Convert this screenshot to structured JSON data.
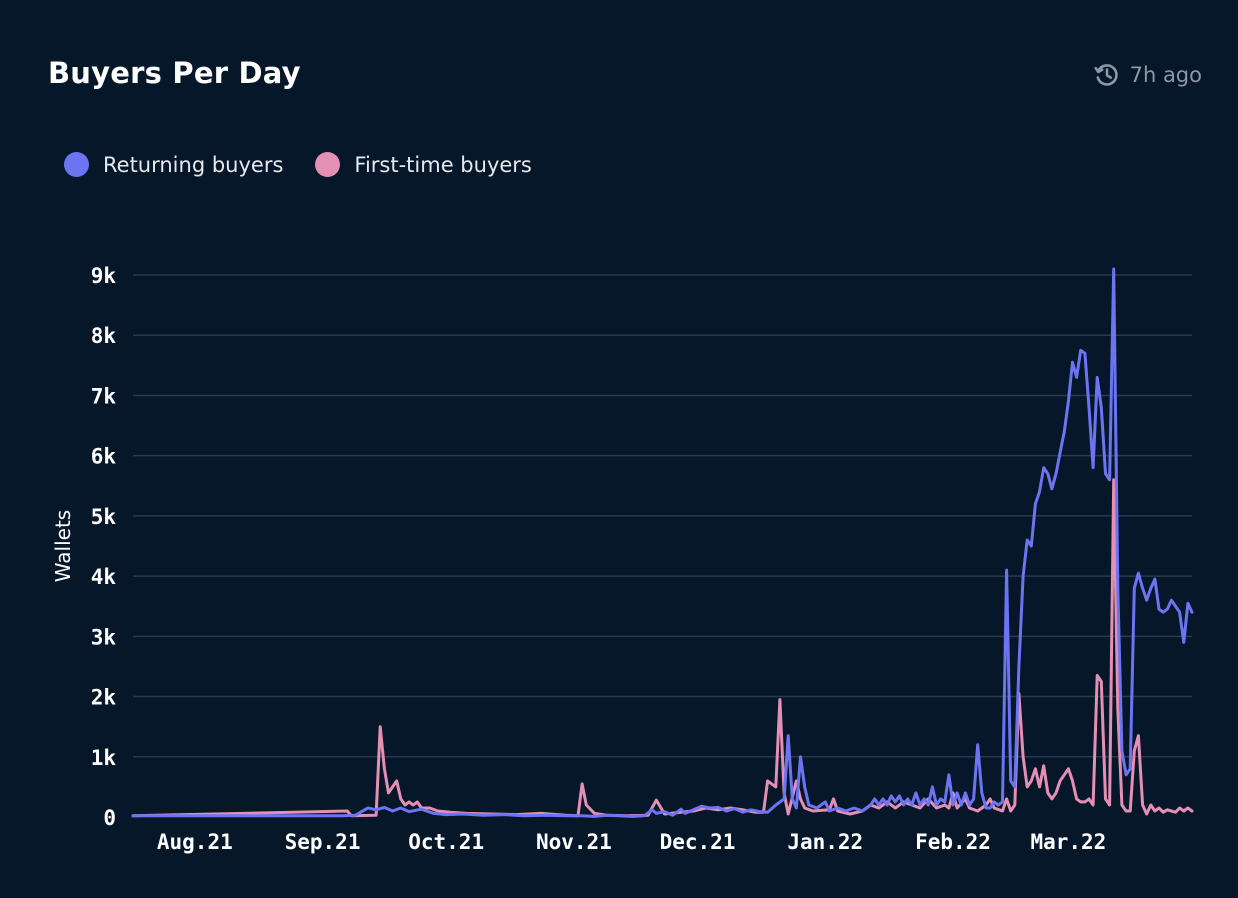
{
  "header": {
    "title": "Buyers Per Day",
    "updated": "7h ago",
    "updated_icon": "refresh-clock-icon"
  },
  "legend": {
    "items": [
      {
        "label": "Returning buyers",
        "color": "#6c74f2"
      },
      {
        "label": "First-time buyers",
        "color": "#e48fb4"
      }
    ]
  },
  "colors": {
    "background": "#06172a",
    "grid": "#263a50"
  },
  "chart_data": {
    "type": "line",
    "title": "Buyers Per Day",
    "xlabel": "",
    "ylabel": "Wallets",
    "ylim": [
      0,
      9000
    ],
    "y_ticks": [
      0,
      1000,
      2000,
      3000,
      4000,
      5000,
      6000,
      7000,
      8000,
      9000
    ],
    "y_tick_labels": [
      "0",
      "1k",
      "2k",
      "3k",
      "4k",
      "5k",
      "6k",
      "7k",
      "8k",
      "9k"
    ],
    "xlim": [
      "2021-07-17",
      "2022-03-31"
    ],
    "x_ticks": [
      "2021-08-01",
      "2021-09-01",
      "2021-10-01",
      "2021-11-01",
      "2021-12-01",
      "2022-01-01",
      "2022-02-01",
      "2022-03-01"
    ],
    "x_tick_labels": [
      "Aug.21",
      "Sep.21",
      "Oct.21",
      "Nov.21",
      "Dec.21",
      "Jan.22",
      "Feb.22",
      "Mar.22"
    ],
    "grid": true,
    "legend_position": "top-left",
    "series": [
      {
        "name": "Returning buyers",
        "color": "#6c74f2",
        "points": [
          [
            "2021-07-17",
            20
          ],
          [
            "2021-09-06",
            20
          ],
          [
            "2021-09-09",
            30
          ],
          [
            "2021-09-12",
            150
          ],
          [
            "2021-09-14",
            120
          ],
          [
            "2021-09-16",
            160
          ],
          [
            "2021-09-18",
            100
          ],
          [
            "2021-09-20",
            150
          ],
          [
            "2021-09-22",
            90
          ],
          [
            "2021-09-25",
            130
          ],
          [
            "2021-09-28",
            60
          ],
          [
            "2021-10-01",
            40
          ],
          [
            "2021-10-05",
            50
          ],
          [
            "2021-10-10",
            30
          ],
          [
            "2021-10-15",
            40
          ],
          [
            "2021-10-20",
            20
          ],
          [
            "2021-10-25",
            30
          ],
          [
            "2021-10-30",
            20
          ],
          [
            "2021-11-03",
            20
          ],
          [
            "2021-11-06",
            10
          ],
          [
            "2021-11-09",
            30
          ],
          [
            "2021-11-12",
            20
          ],
          [
            "2021-11-15",
            10
          ],
          [
            "2021-11-18",
            20
          ],
          [
            "2021-11-20",
            120
          ],
          [
            "2021-11-21",
            60
          ],
          [
            "2021-11-23",
            90
          ],
          [
            "2021-11-25",
            30
          ],
          [
            "2021-11-27",
            130
          ],
          [
            "2021-11-28",
            60
          ],
          [
            "2021-11-30",
            120
          ],
          [
            "2021-12-02",
            180
          ],
          [
            "2021-12-04",
            150
          ],
          [
            "2021-12-06",
            160
          ],
          [
            "2021-12-08",
            100
          ],
          [
            "2021-12-10",
            140
          ],
          [
            "2021-12-12",
            80
          ],
          [
            "2021-12-14",
            120
          ],
          [
            "2021-12-16",
            90
          ],
          [
            "2021-12-18",
            80
          ],
          [
            "2021-12-20",
            200
          ],
          [
            "2021-12-22",
            300
          ],
          [
            "2021-12-23",
            1350
          ],
          [
            "2021-12-24",
            300
          ],
          [
            "2021-12-25",
            150
          ],
          [
            "2021-12-26",
            1000
          ],
          [
            "2021-12-27",
            500
          ],
          [
            "2021-12-28",
            200
          ],
          [
            "2021-12-30",
            150
          ],
          [
            "2022-01-01",
            250
          ],
          [
            "2022-01-02",
            100
          ],
          [
            "2022-01-04",
            150
          ],
          [
            "2022-01-06",
            100
          ],
          [
            "2022-01-08",
            150
          ],
          [
            "2022-01-10",
            100
          ],
          [
            "2022-01-12",
            200
          ],
          [
            "2022-01-13",
            300
          ],
          [
            "2022-01-14",
            200
          ],
          [
            "2022-01-15",
            300
          ],
          [
            "2022-01-16",
            200
          ],
          [
            "2022-01-17",
            350
          ],
          [
            "2022-01-18",
            250
          ],
          [
            "2022-01-19",
            350
          ],
          [
            "2022-01-20",
            200
          ],
          [
            "2022-01-21",
            300
          ],
          [
            "2022-01-22",
            200
          ],
          [
            "2022-01-23",
            400
          ],
          [
            "2022-01-24",
            200
          ],
          [
            "2022-01-25",
            300
          ],
          [
            "2022-01-26",
            200
          ],
          [
            "2022-01-27",
            500
          ],
          [
            "2022-01-28",
            200
          ],
          [
            "2022-01-29",
            300
          ],
          [
            "2022-01-30",
            250
          ],
          [
            "2022-01-31",
            700
          ],
          [
            "2022-02-01",
            200
          ],
          [
            "2022-02-02",
            400
          ],
          [
            "2022-02-03",
            200
          ],
          [
            "2022-02-04",
            400
          ],
          [
            "2022-02-05",
            200
          ],
          [
            "2022-02-06",
            300
          ],
          [
            "2022-02-07",
            1200
          ],
          [
            "2022-02-08",
            400
          ],
          [
            "2022-02-09",
            150
          ],
          [
            "2022-02-10",
            150
          ],
          [
            "2022-02-11",
            250
          ],
          [
            "2022-02-12",
            200
          ],
          [
            "2022-02-13",
            250
          ],
          [
            "2022-02-14",
            4100
          ],
          [
            "2022-02-15",
            600
          ],
          [
            "2022-02-16",
            500
          ],
          [
            "2022-02-17",
            2500
          ],
          [
            "2022-02-18",
            4000
          ],
          [
            "2022-02-19",
            4600
          ],
          [
            "2022-02-20",
            4500
          ],
          [
            "2022-02-21",
            5200
          ],
          [
            "2022-02-22",
            5400
          ],
          [
            "2022-02-23",
            5800
          ],
          [
            "2022-02-24",
            5700
          ],
          [
            "2022-02-25",
            5450
          ],
          [
            "2022-02-26",
            5700
          ],
          [
            "2022-02-27",
            6050
          ],
          [
            "2022-02-28",
            6400
          ],
          [
            "2022-03-01",
            6900
          ],
          [
            "2022-03-02",
            7550
          ],
          [
            "2022-03-03",
            7300
          ],
          [
            "2022-03-04",
            7750
          ],
          [
            "2022-03-05",
            7700
          ],
          [
            "2022-03-06",
            6800
          ],
          [
            "2022-03-07",
            5800
          ],
          [
            "2022-03-08",
            7300
          ],
          [
            "2022-03-09",
            6800
          ],
          [
            "2022-03-10",
            5700
          ],
          [
            "2022-03-11",
            5600
          ],
          [
            "2022-03-12",
            9100
          ],
          [
            "2022-03-13",
            3800
          ],
          [
            "2022-03-14",
            1100
          ],
          [
            "2022-03-15",
            700
          ],
          [
            "2022-03-16",
            800
          ],
          [
            "2022-03-17",
            3800
          ],
          [
            "2022-03-18",
            4050
          ],
          [
            "2022-03-19",
            3800
          ],
          [
            "2022-03-20",
            3600
          ],
          [
            "2022-03-21",
            3800
          ],
          [
            "2022-03-22",
            3950
          ],
          [
            "2022-03-23",
            3450
          ],
          [
            "2022-03-24",
            3400
          ],
          [
            "2022-03-25",
            3450
          ],
          [
            "2022-03-26",
            3600
          ],
          [
            "2022-03-27",
            3500
          ],
          [
            "2022-03-28",
            3400
          ],
          [
            "2022-03-29",
            2900
          ],
          [
            "2022-03-30",
            3550
          ],
          [
            "2022-03-31",
            3400
          ]
        ]
      },
      {
        "name": "First-time buyers",
        "color": "#e48fb4",
        "points": [
          [
            "2021-07-17",
            20
          ],
          [
            "2021-09-07",
            100
          ],
          [
            "2021-09-08",
            20
          ],
          [
            "2021-09-14",
            30
          ],
          [
            "2021-09-15",
            1500
          ],
          [
            "2021-09-16",
            800
          ],
          [
            "2021-09-17",
            400
          ],
          [
            "2021-09-18",
            500
          ],
          [
            "2021-09-19",
            600
          ],
          [
            "2021-09-20",
            300
          ],
          [
            "2021-09-21",
            200
          ],
          [
            "2021-09-22",
            250
          ],
          [
            "2021-09-23",
            200
          ],
          [
            "2021-09-24",
            250
          ],
          [
            "2021-09-25",
            150
          ],
          [
            "2021-09-27",
            150
          ],
          [
            "2021-09-29",
            100
          ],
          [
            "2021-10-02",
            80
          ],
          [
            "2021-10-06",
            60
          ],
          [
            "2021-10-12",
            50
          ],
          [
            "2021-10-18",
            40
          ],
          [
            "2021-10-24",
            60
          ],
          [
            "2021-10-30",
            30
          ],
          [
            "2021-11-02",
            20
          ],
          [
            "2021-11-03",
            550
          ],
          [
            "2021-11-04",
            200
          ],
          [
            "2021-11-06",
            60
          ],
          [
            "2021-11-09",
            30
          ],
          [
            "2021-11-14",
            20
          ],
          [
            "2021-11-19",
            30
          ],
          [
            "2021-11-21",
            280
          ],
          [
            "2021-11-23",
            50
          ],
          [
            "2021-11-27",
            80
          ],
          [
            "2021-11-30",
            100
          ],
          [
            "2021-12-03",
            150
          ],
          [
            "2021-12-06",
            120
          ],
          [
            "2021-12-09",
            150
          ],
          [
            "2021-12-12",
            120
          ],
          [
            "2021-12-15",
            80
          ],
          [
            "2021-12-17",
            80
          ],
          [
            "2021-12-18",
            600
          ],
          [
            "2021-12-19",
            550
          ],
          [
            "2021-12-20",
            500
          ],
          [
            "2021-12-21",
            1950
          ],
          [
            "2021-12-22",
            400
          ],
          [
            "2021-12-23",
            50
          ],
          [
            "2021-12-25",
            600
          ],
          [
            "2021-12-26",
            300
          ],
          [
            "2021-12-27",
            150
          ],
          [
            "2021-12-29",
            100
          ],
          [
            "2022-01-02",
            120
          ],
          [
            "2022-01-03",
            300
          ],
          [
            "2022-01-04",
            100
          ],
          [
            "2022-01-07",
            50
          ],
          [
            "2022-01-10",
            100
          ],
          [
            "2022-01-12",
            200
          ],
          [
            "2022-01-14",
            150
          ],
          [
            "2022-01-16",
            250
          ],
          [
            "2022-01-18",
            150
          ],
          [
            "2022-01-20",
            250
          ],
          [
            "2022-01-22",
            200
          ],
          [
            "2022-01-24",
            150
          ],
          [
            "2022-01-26",
            300
          ],
          [
            "2022-01-28",
            150
          ],
          [
            "2022-01-30",
            200
          ],
          [
            "2022-01-31",
            150
          ],
          [
            "2022-02-01",
            400
          ],
          [
            "2022-02-02",
            150
          ],
          [
            "2022-02-04",
            300
          ],
          [
            "2022-02-05",
            150
          ],
          [
            "2022-02-07",
            100
          ],
          [
            "2022-02-09",
            200
          ],
          [
            "2022-02-10",
            300
          ],
          [
            "2022-02-11",
            150
          ],
          [
            "2022-02-13",
            100
          ],
          [
            "2022-02-14",
            300
          ],
          [
            "2022-02-15",
            100
          ],
          [
            "2022-02-16",
            200
          ],
          [
            "2022-02-17",
            2050
          ],
          [
            "2022-02-18",
            1000
          ],
          [
            "2022-02-19",
            500
          ],
          [
            "2022-02-20",
            600
          ],
          [
            "2022-02-21",
            800
          ],
          [
            "2022-02-22",
            500
          ],
          [
            "2022-02-23",
            850
          ],
          [
            "2022-02-24",
            400
          ],
          [
            "2022-02-25",
            300
          ],
          [
            "2022-02-26",
            400
          ],
          [
            "2022-02-27",
            600
          ],
          [
            "2022-02-28",
            700
          ],
          [
            "2022-03-01",
            800
          ],
          [
            "2022-03-02",
            600
          ],
          [
            "2022-03-03",
            300
          ],
          [
            "2022-03-04",
            250
          ],
          [
            "2022-03-05",
            250
          ],
          [
            "2022-03-06",
            300
          ],
          [
            "2022-03-07",
            200
          ],
          [
            "2022-03-08",
            2350
          ],
          [
            "2022-03-09",
            2250
          ],
          [
            "2022-03-10",
            300
          ],
          [
            "2022-03-11",
            200
          ],
          [
            "2022-03-12",
            5600
          ],
          [
            "2022-03-13",
            1800
          ],
          [
            "2022-03-14",
            200
          ],
          [
            "2022-03-15",
            100
          ],
          [
            "2022-03-16",
            100
          ],
          [
            "2022-03-17",
            1100
          ],
          [
            "2022-03-18",
            1350
          ],
          [
            "2022-03-19",
            200
          ],
          [
            "2022-03-20",
            50
          ],
          [
            "2022-03-21",
            200
          ],
          [
            "2022-03-22",
            100
          ],
          [
            "2022-03-23",
            150
          ],
          [
            "2022-03-24",
            80
          ],
          [
            "2022-03-25",
            120
          ],
          [
            "2022-03-26",
            100
          ],
          [
            "2022-03-27",
            80
          ],
          [
            "2022-03-28",
            150
          ],
          [
            "2022-03-29",
            100
          ],
          [
            "2022-03-30",
            150
          ],
          [
            "2022-03-31",
            100
          ]
        ]
      }
    ]
  }
}
